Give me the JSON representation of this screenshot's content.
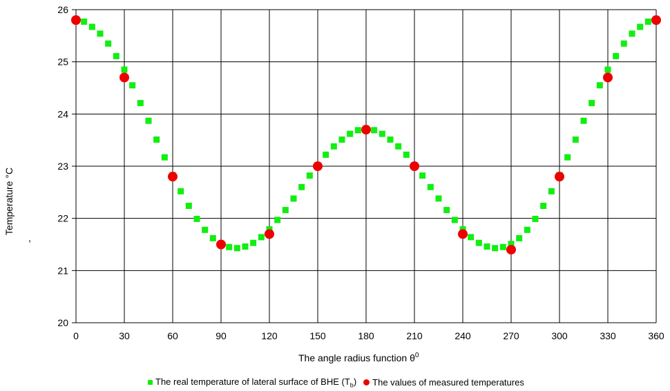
{
  "chart_data": {
    "type": "scatter",
    "xlabel": "The angle radius function θ",
    "xlabel_sup": "0",
    "ylabel": "Temperature °C",
    "ylabel_mark": ",",
    "xlim": [
      0,
      360
    ],
    "ylim": [
      20,
      26
    ],
    "xticks": [
      0,
      30,
      60,
      90,
      120,
      150,
      180,
      210,
      240,
      270,
      300,
      330,
      360
    ],
    "yticks": [
      20,
      21,
      22,
      23,
      24,
      25,
      26
    ],
    "grid": true,
    "legend_position": "bottom",
    "series": [
      {
        "name": "The real temperature of lateral surface of BHE (T",
        "name_sub": "b",
        "name_suffix": ")",
        "marker": "square",
        "color": "#11ee11",
        "x": [
          0,
          5,
          10,
          15,
          20,
          25,
          30,
          35,
          40,
          45,
          50,
          55,
          60,
          65,
          70,
          75,
          80,
          85,
          90,
          95,
          100,
          105,
          110,
          115,
          120,
          125,
          130,
          135,
          140,
          145,
          150,
          155,
          160,
          165,
          170,
          175,
          180,
          185,
          190,
          195,
          200,
          205,
          210,
          215,
          220,
          225,
          230,
          235,
          240,
          245,
          250,
          255,
          260,
          265,
          270,
          275,
          280,
          285,
          290,
          295,
          300,
          305,
          310,
          315,
          320,
          325,
          330,
          335,
          340,
          345,
          350,
          355,
          360
        ],
        "y": [
          25.8,
          25.77,
          25.67,
          25.54,
          25.35,
          25.11,
          24.85,
          24.55,
          24.21,
          23.87,
          23.51,
          23.17,
          22.83,
          22.52,
          22.24,
          21.99,
          21.78,
          21.62,
          21.51,
          21.45,
          21.43,
          21.46,
          21.53,
          21.64,
          21.79,
          21.97,
          22.16,
          22.38,
          22.6,
          22.82,
          23.02,
          23.22,
          23.38,
          23.51,
          23.62,
          23.69,
          23.71,
          23.69,
          23.62,
          23.51,
          23.38,
          23.22,
          23.02,
          22.82,
          22.6,
          22.38,
          22.16,
          21.97,
          21.79,
          21.64,
          21.53,
          21.46,
          21.43,
          21.45,
          21.51,
          21.62,
          21.78,
          21.99,
          22.24,
          22.52,
          22.83,
          23.17,
          23.51,
          23.87,
          24.21,
          24.55,
          24.85,
          25.11,
          25.35,
          25.54,
          25.67,
          25.77,
          25.8
        ]
      },
      {
        "name": "The values of measured temperatures",
        "marker": "circle",
        "color": "#ee0000",
        "x": [
          0,
          30,
          60,
          90,
          120,
          150,
          180,
          210,
          240,
          270,
          300,
          330,
          360
        ],
        "y": [
          25.8,
          24.7,
          22.8,
          21.5,
          21.7,
          23.0,
          23.7,
          23.0,
          21.7,
          21.4,
          22.8,
          24.7,
          25.8
        ]
      }
    ]
  }
}
